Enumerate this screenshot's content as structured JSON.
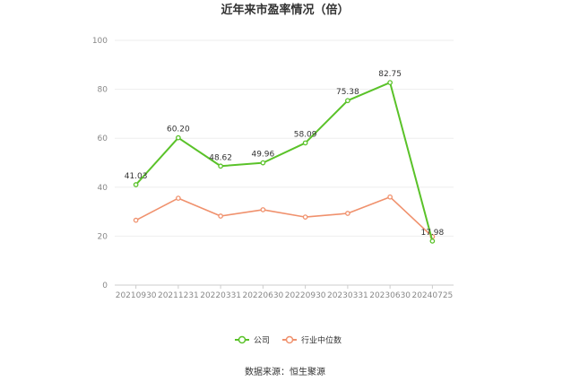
{
  "chart_data": {
    "type": "line",
    "title": "近年来市盈率情况（倍）",
    "categories": [
      "20210930",
      "20211231",
      "20220331",
      "20220630",
      "20220930",
      "20230331",
      "20230630",
      "20240725"
    ],
    "series": [
      {
        "name": "公司",
        "values": [
          41.03,
          60.2,
          48.62,
          49.96,
          58.09,
          75.38,
          82.75,
          17.98
        ],
        "labels": [
          "41.03",
          "60.20",
          "48.62",
          "49.96",
          "58.09",
          "75.38",
          "82.75",
          "17.98"
        ],
        "color": "#5ac229"
      },
      {
        "name": "行业中位数",
        "values": [
          26.5,
          35.5,
          28.2,
          30.8,
          27.8,
          29.3,
          36.0,
          19.8
        ],
        "color": "#f0916d"
      }
    ],
    "y_ticks": [
      "0",
      "20",
      "40",
      "60",
      "80",
      "100"
    ],
    "ylim": [
      0,
      100
    ],
    "grid": true,
    "legend_position": "bottom"
  },
  "source": "数据来源：恒生聚源"
}
